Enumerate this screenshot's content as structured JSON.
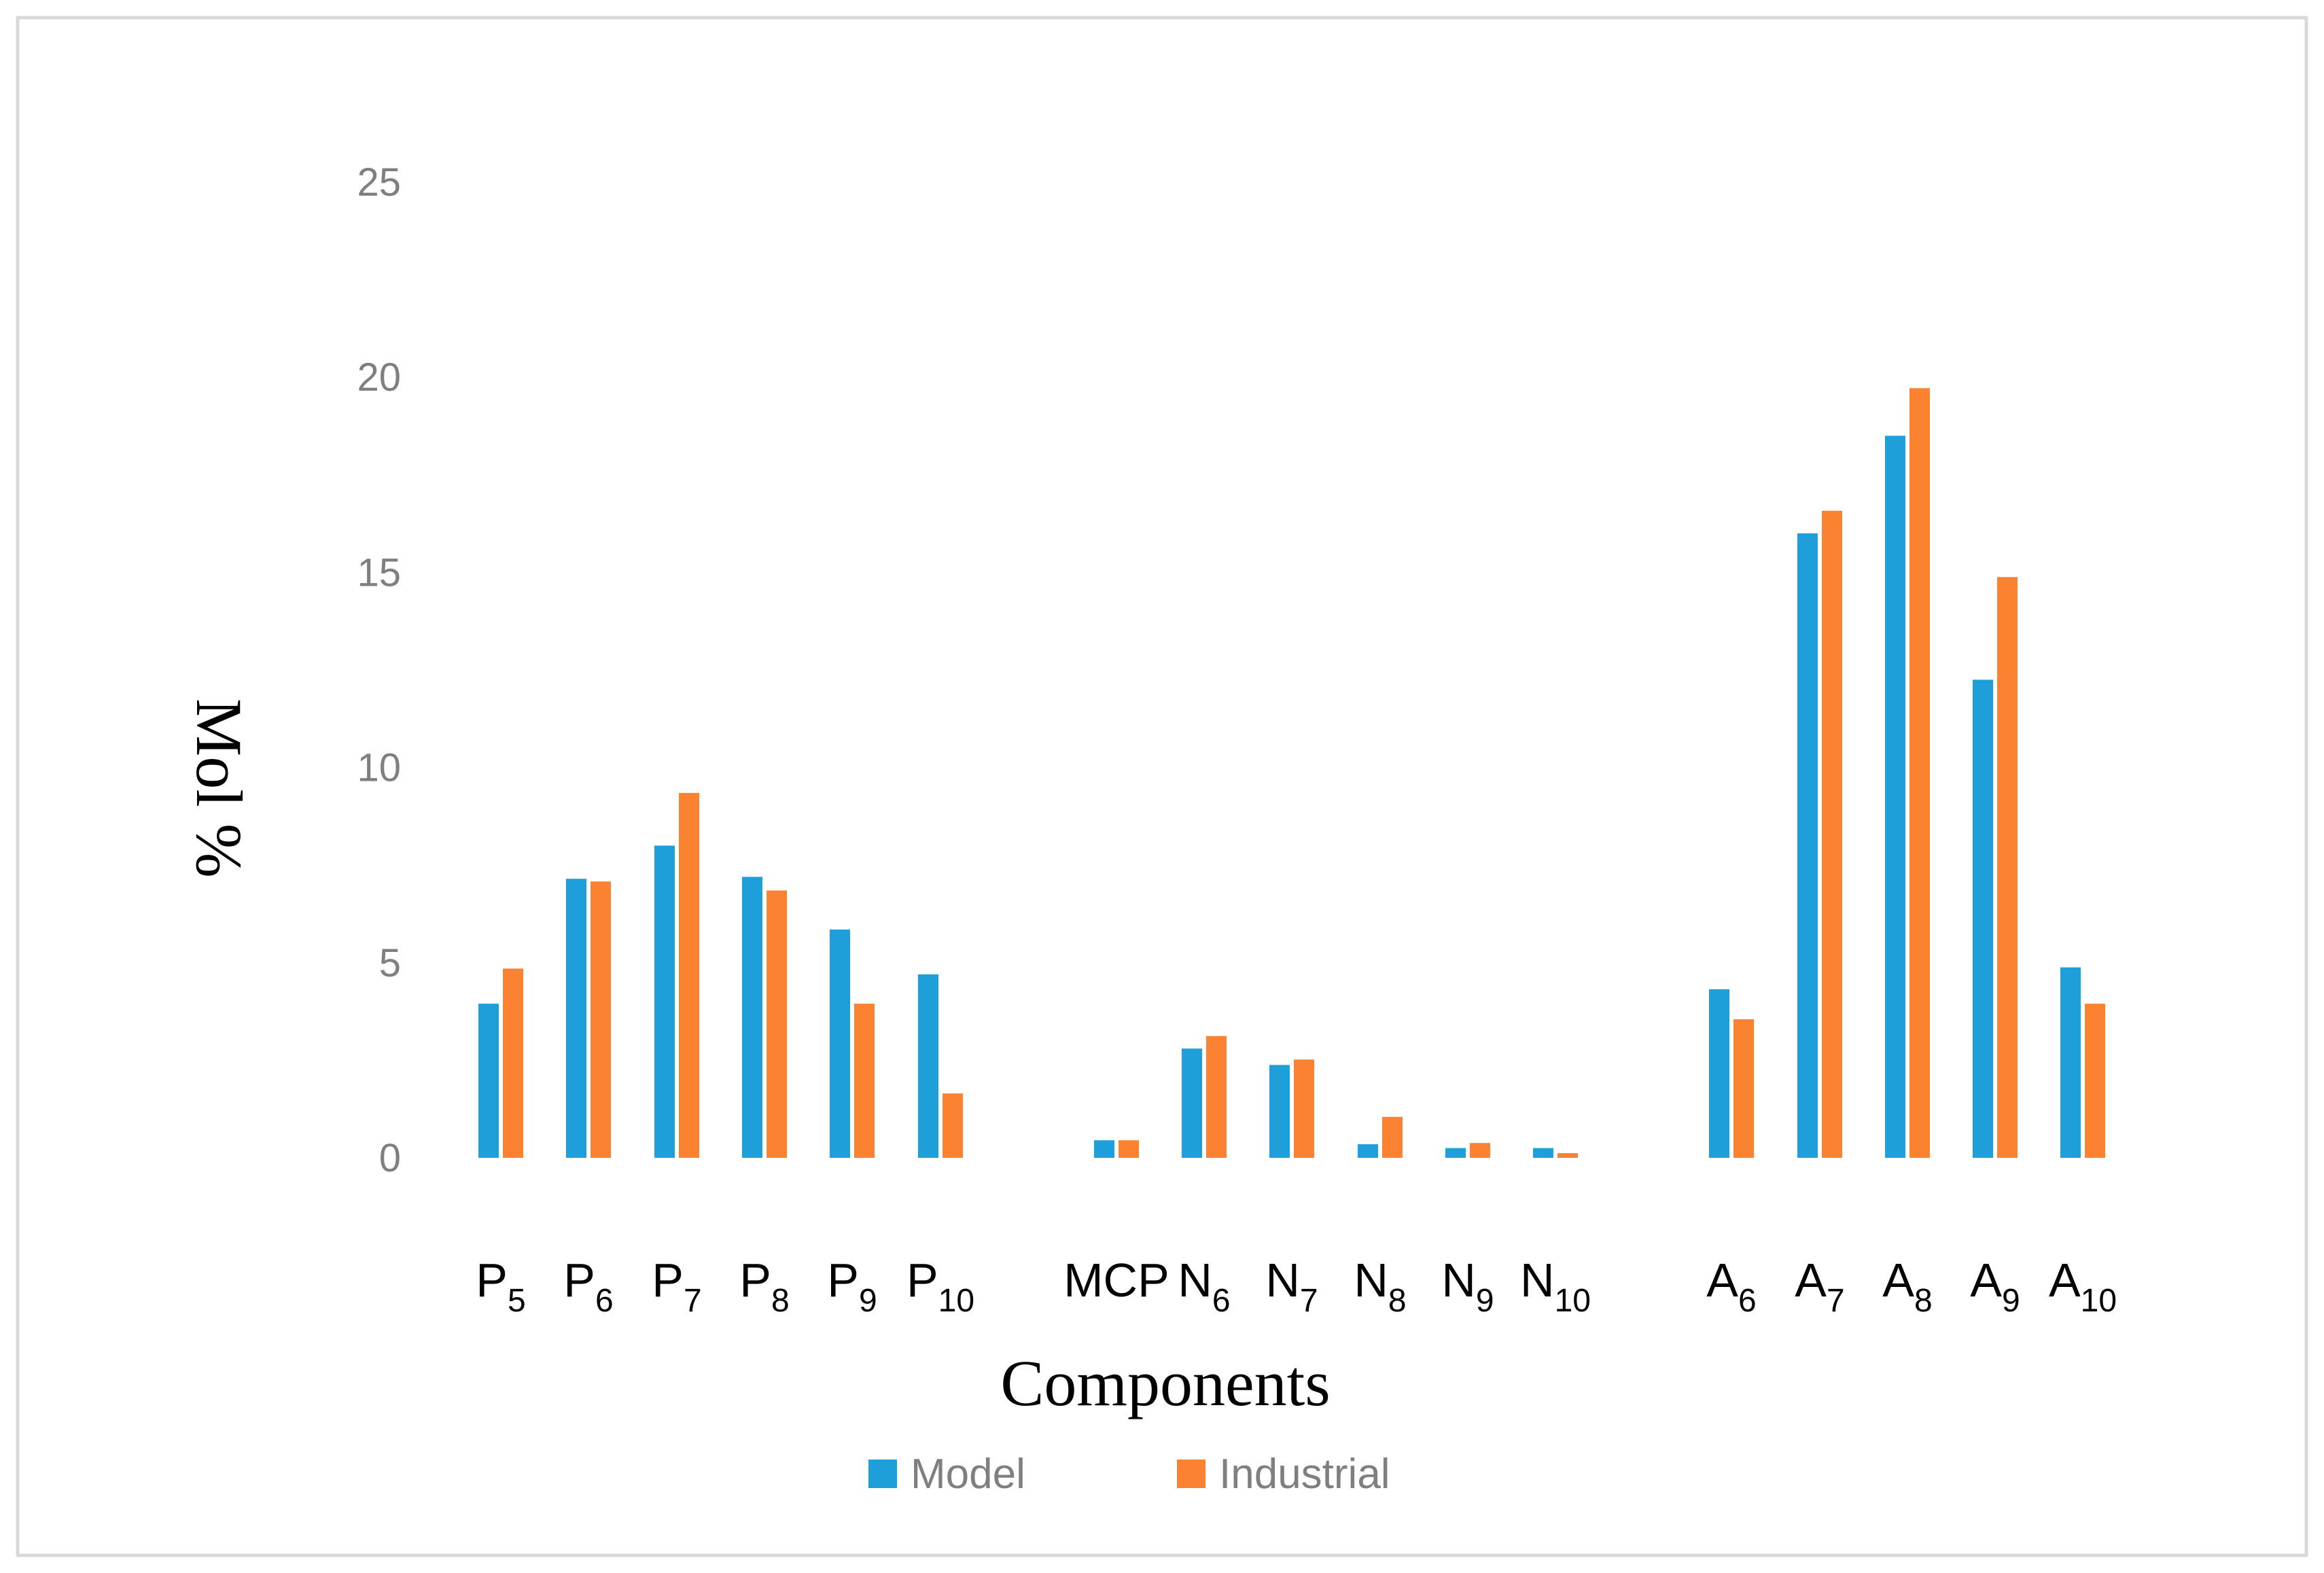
{
  "chart_data": {
    "type": "bar",
    "title": "",
    "xlabel": "Components",
    "ylabel": "Mol %",
    "ylim": [
      0,
      25
    ],
    "yticks": [
      0,
      5,
      10,
      15,
      20,
      25
    ],
    "grid": false,
    "legend_position": "bottom",
    "categories": [
      {
        "base": "P",
        "sub": "5",
        "group": 0
      },
      {
        "base": "P",
        "sub": "6",
        "group": 0
      },
      {
        "base": "P",
        "sub": "7",
        "group": 0
      },
      {
        "base": "P",
        "sub": "8",
        "group": 0
      },
      {
        "base": "P",
        "sub": "9",
        "group": 0
      },
      {
        "base": "P",
        "sub": "10",
        "group": 0
      },
      {
        "base": "MCP",
        "sub": "",
        "group": 1
      },
      {
        "base": "N",
        "sub": "6",
        "group": 1
      },
      {
        "base": "N",
        "sub": "7",
        "group": 1
      },
      {
        "base": "N",
        "sub": "8",
        "group": 1
      },
      {
        "base": "N",
        "sub": "9",
        "group": 1
      },
      {
        "base": "N",
        "sub": "10",
        "group": 1
      },
      {
        "base": "A",
        "sub": "6",
        "group": 2
      },
      {
        "base": "A",
        "sub": "7",
        "group": 2
      },
      {
        "base": "A",
        "sub": "8",
        "group": 2
      },
      {
        "base": "A",
        "sub": "9",
        "group": 2
      },
      {
        "base": "A",
        "sub": "10",
        "group": 2
      }
    ],
    "series": [
      {
        "name": "Model",
        "color": "#1f9fd9",
        "values": [
          3.95,
          7.15,
          8.0,
          7.2,
          5.85,
          4.7,
          0.45,
          2.8,
          2.38,
          0.35,
          0.25,
          0.25,
          4.32,
          16.0,
          18.5,
          12.25,
          4.88
        ]
      },
      {
        "name": "Industrial",
        "color": "#fb8231",
        "values": [
          4.85,
          7.08,
          9.35,
          6.85,
          3.95,
          1.65,
          0.45,
          3.12,
          2.52,
          1.05,
          0.38,
          0.12,
          3.55,
          16.58,
          19.72,
          14.88,
          3.95
        ]
      }
    ]
  }
}
